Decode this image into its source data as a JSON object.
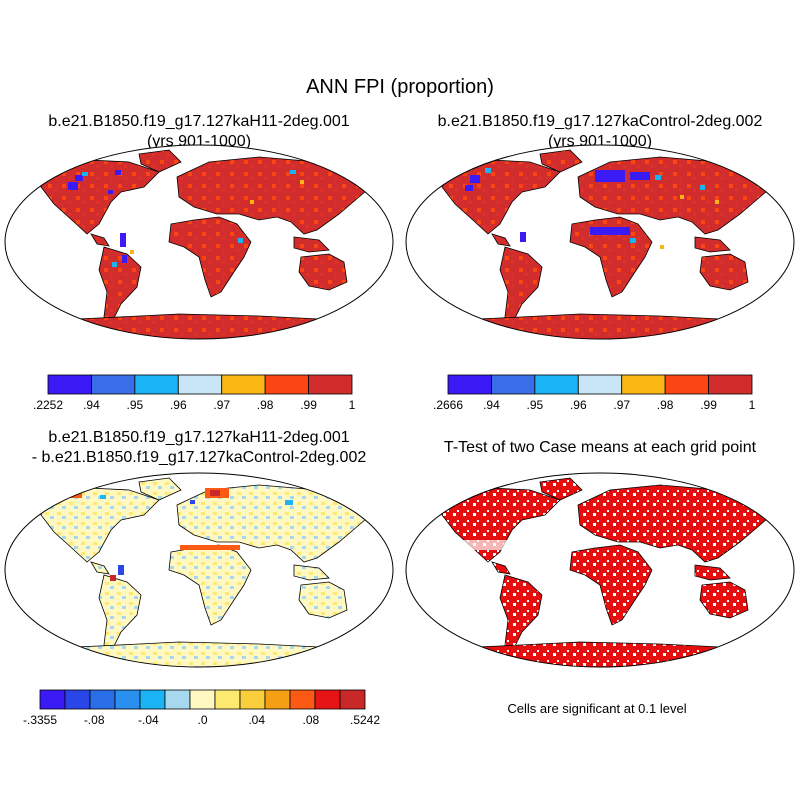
{
  "title": "ANN FPI (proportion)",
  "panels": [
    {
      "title_line1": "b.e21.B1850.f19_g17.127kaH11-2deg.001",
      "title_line2": "(yrs 901-1000)",
      "colorbar": {
        "ticks": [
          ".2252",
          ".94",
          ".95",
          ".96",
          ".97",
          ".98",
          ".99",
          "1"
        ],
        "colors": [
          "#3a1af5",
          "#3a6ee8",
          "#1ab4f5",
          "#c8e6f5",
          "#fbb814",
          "#fb4614",
          "#d22d2d"
        ]
      }
    },
    {
      "title_line1": "b.e21.B1850.f19_g17.127kaControl-2deg.002",
      "title_line2": "(yrs 901-1000)",
      "colorbar": {
        "ticks": [
          ".2666",
          ".94",
          ".95",
          ".96",
          ".97",
          ".98",
          ".99",
          "1"
        ],
        "colors": [
          "#3a1af5",
          "#3a6ee8",
          "#1ab4f5",
          "#c8e6f5",
          "#fbb814",
          "#fb4614",
          "#d22d2d"
        ]
      }
    },
    {
      "title_line1": "b.e21.B1850.f19_g17.127kaH11-2deg.001",
      "title_line2": "- b.e21.B1850.f19_g17.127kaControl-2deg.002",
      "colorbar": {
        "ticks": [
          "-.3355",
          "-.08",
          "-.04",
          ".0",
          ".04",
          ".08",
          ".5242"
        ],
        "colors": [
          "#3a1af5",
          "#2a46e8",
          "#2a6ee8",
          "#2a90f0",
          "#1ab4f5",
          "#a6d8f0",
          "#fff8c0",
          "#fde870",
          "#fbcf3c",
          "#f5a014",
          "#fb5a14",
          "#e61414",
          "#c82828"
        ]
      }
    },
    {
      "title_line1": "T-Test of two Case means at each grid point",
      "note": "Cells are significant at 0.1 level"
    }
  ]
}
